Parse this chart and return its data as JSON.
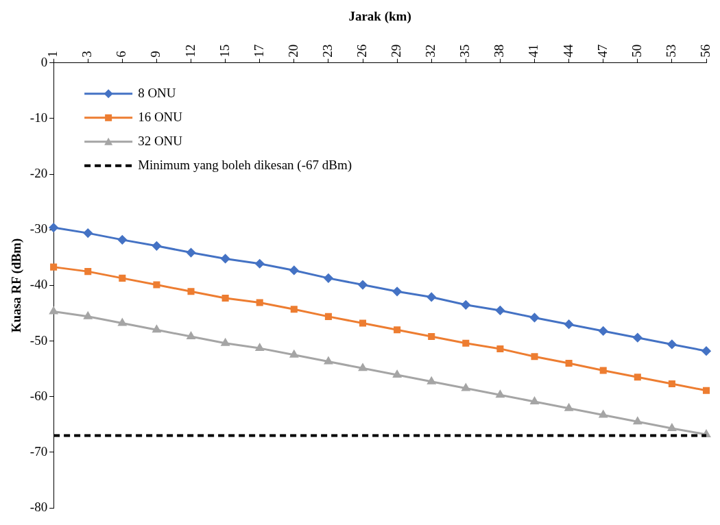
{
  "chart_data": {
    "type": "line",
    "xlabel": "Jarak (km)",
    "ylabel": "Kuasa RF (dBm)",
    "categories": [
      "1",
      "3",
      "6",
      "9",
      "12",
      "15",
      "17",
      "20",
      "23",
      "26",
      "29",
      "32",
      "35",
      "38",
      "41",
      "44",
      "47",
      "50",
      "53",
      "56"
    ],
    "series": [
      {
        "name": "8 ONU",
        "color": "#4472c4",
        "marker": "diamond",
        "values": [
          -29.6,
          -30.6,
          -31.8,
          -32.9,
          -34.1,
          -35.2,
          -36.1,
          -37.3,
          -38.7,
          -39.9,
          -41.1,
          -42.1,
          -43.5,
          -44.5,
          -45.8,
          -47.0,
          -48.2,
          -49.4,
          -50.6,
          -51.8
        ]
      },
      {
        "name": "16 ONU",
        "color": "#ed7d31",
        "marker": "square",
        "values": [
          -36.7,
          -37.5,
          -38.7,
          -39.9,
          -41.1,
          -42.3,
          -43.1,
          -44.3,
          -45.6,
          -46.8,
          -48.0,
          -49.2,
          -50.4,
          -51.4,
          -52.8,
          -54.0,
          -55.3,
          -56.5,
          -57.7,
          -58.9
        ]
      },
      {
        "name": "32 ONU",
        "color": "#a5a5a5",
        "marker": "triangle",
        "values": [
          -44.7,
          -45.6,
          -46.8,
          -48.0,
          -49.2,
          -50.4,
          -51.3,
          -52.5,
          -53.7,
          -54.9,
          -56.1,
          -57.3,
          -58.5,
          -59.7,
          -60.9,
          -62.1,
          -63.3,
          -64.5,
          -65.7,
          -66.8
        ]
      }
    ],
    "ref_lines": [
      {
        "axis": "y",
        "value": -67,
        "label": "Minimum yang boleh dikesan (-67 dBm)",
        "color": "#000000",
        "line_style": "dashed"
      }
    ],
    "ylim": [
      -80,
      0
    ],
    "yticks": [
      0,
      -10,
      -20,
      -30,
      -40,
      -50,
      -60,
      -70,
      -80
    ],
    "grid": false,
    "legend": "top left",
    "line_style": "solid"
  }
}
